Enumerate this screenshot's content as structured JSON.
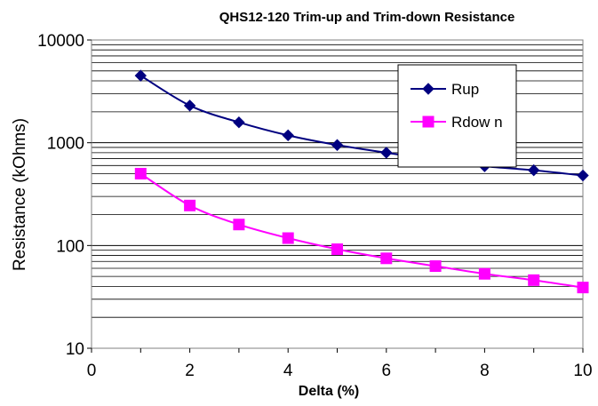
{
  "chart_data": {
    "type": "line",
    "title": "QHS12-120  Trim-up and Trim-down Resistance",
    "xlabel": "Delta (%)",
    "ylabel": "Resistance (kOhms)",
    "xlim": [
      0,
      10
    ],
    "ylim": [
      10,
      10000
    ],
    "yscale": "log",
    "grid": "horizontal major and minor",
    "legend_position": "top-right",
    "x_ticks": [
      "0",
      "2",
      "4",
      "6",
      "8",
      "10"
    ],
    "y_ticks": [
      "10",
      "100",
      "1000",
      "10000"
    ],
    "x": [
      1,
      2,
      3,
      4,
      5,
      6,
      7,
      8,
      9,
      10
    ],
    "series": [
      {
        "name": "Rup",
        "color": "#000080",
        "marker": "diamond",
        "values": [
          4500,
          2300,
          1580,
          1180,
          950,
          800,
          680,
          590,
          540,
          480
        ]
      },
      {
        "name": "Rdow n",
        "color": "#ff00ff",
        "marker": "square",
        "values": [
          500,
          245,
          160,
          118,
          92,
          75,
          63,
          53,
          46,
          39
        ]
      }
    ]
  }
}
